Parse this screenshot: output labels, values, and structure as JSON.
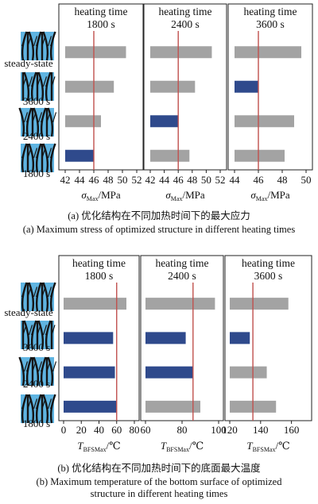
{
  "row_labels": [
    "steady-state",
    "3600 s",
    "2400 s",
    "1800 s"
  ],
  "colors": {
    "bar_gray": "#a3a3a3",
    "bar_highlight": "#2f4a8c",
    "reference_line": "#c0504d",
    "thumb_sky": "#5fb4e1",
    "thumb_tree": "#141414"
  },
  "panel_a": {
    "caption_cn": "(a) 优化结构在不同加热时间下的最大应力",
    "caption_en": "(a) Maximum stress of optimized structure in different heating times"
  },
  "panel_b": {
    "caption_cn": "(b) 优化结构在不同加热时间下的底面最大温度",
    "caption_en_1": "(b) Maximum temperature of the bottom surface of optimized",
    "caption_en_2": "structure in different heating times"
  },
  "chart_data": [
    {
      "type": "bar",
      "orientation": "horizontal",
      "panel": "a",
      "title_line1": "heating time",
      "title_line2": "1800 s",
      "xlabel_main": "σ",
      "xlabel_sub": "Max",
      "xlabel_unit": "/MPa",
      "categories": [
        "steady-state",
        "3600 s",
        "2400 s",
        "1800 s"
      ],
      "values": [
        50.5,
        48.8,
        47.0,
        46.0
      ],
      "highlight_index": 3,
      "reference": 46.0,
      "xlim": [
        42,
        52
      ],
      "ticks": [
        42,
        44,
        46,
        48,
        50,
        52
      ],
      "grid": false
    },
    {
      "type": "bar",
      "orientation": "horizontal",
      "panel": "a",
      "title_line1": "heating time",
      "title_line2": "2400 s",
      "xlabel_main": "σ",
      "xlabel_sub": "Max",
      "xlabel_unit": "/MPa",
      "categories": [
        "steady-state",
        "3600 s",
        "2400 s",
        "1800 s"
      ],
      "values": [
        50.8,
        48.4,
        46.0,
        47.6
      ],
      "highlight_index": 2,
      "reference": 46.0,
      "xlim": [
        42,
        52
      ],
      "ticks": [
        42,
        44,
        46,
        48,
        50,
        52
      ],
      "grid": false
    },
    {
      "type": "bar",
      "orientation": "horizontal",
      "panel": "a",
      "title_line1": "heating time",
      "title_line2": "3600 s",
      "xlabel_main": "σ",
      "xlabel_sub": "Max",
      "xlabel_unit": "/MPa",
      "categories": [
        "steady-state",
        "3600 s",
        "2400 s",
        "1800 s"
      ],
      "values": [
        49.6,
        46.0,
        49.0,
        48.2
      ],
      "highlight_index": 1,
      "reference": 46.0,
      "xlim": [
        44,
        50
      ],
      "ticks": [
        44,
        46,
        48,
        50
      ],
      "grid": false
    },
    {
      "type": "bar",
      "orientation": "horizontal",
      "panel": "b",
      "title_line1": "heating time",
      "title_line2": "1800 s",
      "xlabel_main": "T",
      "xlabel_sub": "BFSMax",
      "xlabel_unit": "/℃",
      "categories": [
        "steady-state",
        "3600 s",
        "2400 s",
        "1800 s"
      ],
      "values": [
        71,
        56,
        58,
        60
      ],
      "highlight_index": 3,
      "highlight_all": [
        1,
        2,
        3
      ],
      "reference": 60,
      "xlim": [
        0,
        80
      ],
      "ticks": [
        0,
        20,
        40,
        60,
        80
      ],
      "grid": false
    },
    {
      "type": "bar",
      "orientation": "horizontal",
      "panel": "b",
      "title_line1": "heating time",
      "title_line2": "2400 s",
      "xlabel_main": "T",
      "xlabel_sub": "BFSMax",
      "xlabel_unit": "/℃",
      "categories": [
        "steady-state",
        "3600 s",
        "2400 s",
        "1800 s"
      ],
      "values": [
        98,
        82,
        86,
        90
      ],
      "highlight_index": 2,
      "highlight_all": [
        1,
        2
      ],
      "reference": 86,
      "xlim": [
        60,
        100
      ],
      "ticks": [
        60,
        80,
        100
      ],
      "grid": false
    },
    {
      "type": "bar",
      "orientation": "horizontal",
      "panel": "b",
      "title_line1": "heating time",
      "title_line2": "3600 s",
      "xlabel_main": "T",
      "xlabel_sub": "BFSMax",
      "xlabel_unit": "/℃",
      "categories": [
        "steady-state",
        "3600 s",
        "2400 s",
        "1800 s"
      ],
      "values": [
        158,
        133,
        144,
        150
      ],
      "highlight_index": 1,
      "highlight_all": [
        1
      ],
      "reference": 135,
      "xlim": [
        120,
        170
      ],
      "ticks": [
        120,
        140,
        160
      ],
      "grid": false
    }
  ]
}
